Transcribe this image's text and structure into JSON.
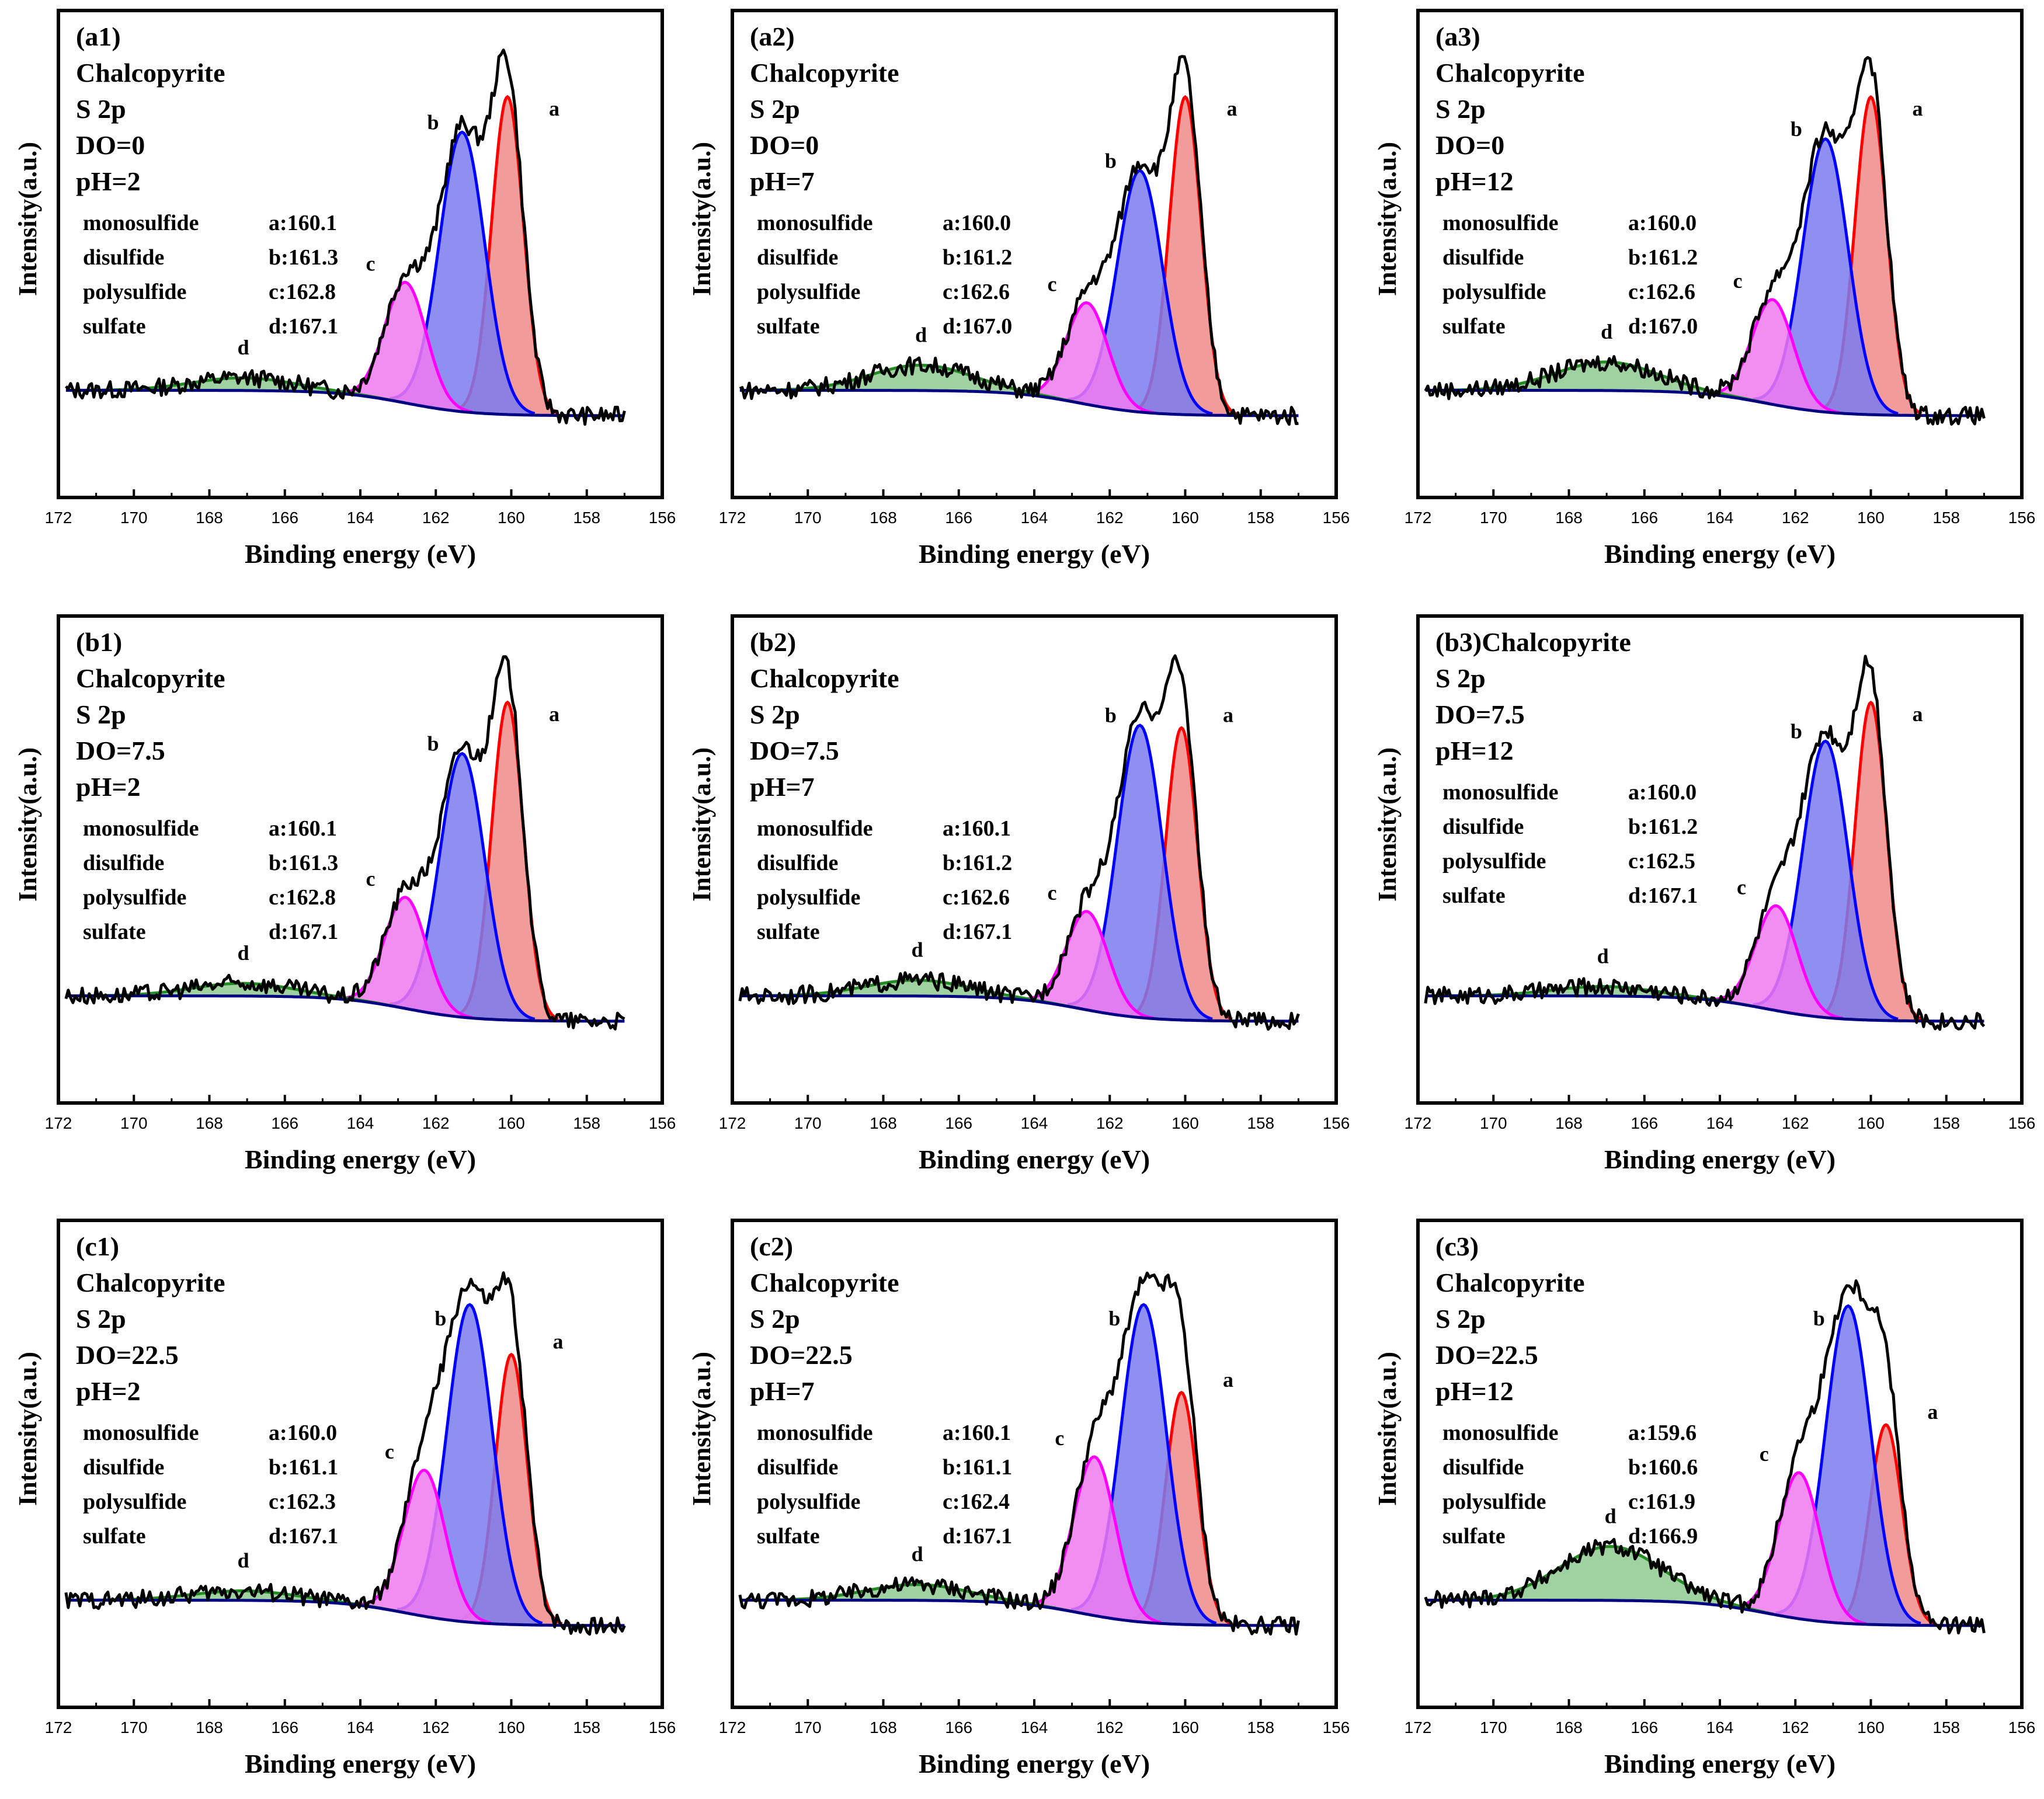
{
  "chart_data": [
    {
      "type": "line",
      "panel": "(a1)",
      "title": [
        "(a1)",
        "Chalcopyrite",
        "S 2p",
        "DO=0",
        "pH=2"
      ],
      "peaks": [
        {
          "label": "monosulfide",
          "letter": "a:",
          "center": 160.1
        },
        {
          "label": "disulfide",
          "letter": "b:",
          "center": 161.3
        },
        {
          "label": "polysulfide",
          "letter": "c:",
          "center": 162.8
        },
        {
          "label": "sulfate",
          "letter": "d:",
          "center": 167.1
        }
      ],
      "peak_heights": {
        "a": 100,
        "b": 88,
        "c": 38,
        "d": 4
      },
      "base": {
        "high": 8,
        "low": 0
      },
      "xlabel": "Binding energy (eV)",
      "ylabel": "Intensity(a.u.)",
      "xlim": [
        172,
        156
      ],
      "xticks": [
        172,
        170,
        168,
        166,
        164,
        162,
        160,
        158,
        156
      ]
    },
    {
      "type": "line",
      "panel": "(a2)",
      "title": [
        "(a2)",
        "Chalcopyrite",
        "S 2p",
        "DO=0",
        "pH=7"
      ],
      "peaks": [
        {
          "label": "monosulfide",
          "letter": "a:",
          "center": 160.0
        },
        {
          "label": "disulfide",
          "letter": "b:",
          "center": 161.2
        },
        {
          "label": "polysulfide",
          "letter": "c:",
          "center": 162.6
        },
        {
          "label": "sulfate",
          "letter": "d:",
          "center": 167.0
        }
      ],
      "peak_heights": {
        "a": 100,
        "b": 76,
        "c": 32,
        "d": 8
      },
      "base": {
        "high": 8,
        "low": 0
      },
      "xlabel": "Binding energy (eV)",
      "ylabel": "Intensity(a.u.)",
      "xlim": [
        172,
        156
      ],
      "xticks": [
        172,
        170,
        168,
        166,
        164,
        162,
        160,
        158,
        156
      ]
    },
    {
      "type": "line",
      "panel": "(a3)",
      "title": [
        "(a3)",
        "Chalcopyrite",
        "S 2p",
        "DO=0",
        "pH=12"
      ],
      "peaks": [
        {
          "label": "monosulfide",
          "letter": "a:",
          "center": 160.0
        },
        {
          "label": "disulfide",
          "letter": "b:",
          "center": 161.2
        },
        {
          "label": "polysulfide",
          "letter": "c:",
          "center": 162.6
        },
        {
          "label": "sulfate",
          "letter": "d:",
          "center": 167.0
        }
      ],
      "peak_heights": {
        "a": 100,
        "b": 86,
        "c": 33,
        "d": 9
      },
      "base": {
        "high": 8,
        "low": 0
      },
      "xlabel": "Binding energy (eV)",
      "ylabel": "Intensity(a.u.)",
      "xlim": [
        172,
        156
      ],
      "xticks": [
        172,
        170,
        168,
        166,
        164,
        162,
        160,
        158,
        156
      ]
    },
    {
      "type": "line",
      "panel": "(b1)",
      "title": [
        "(b1)",
        "Chalcopyrite",
        "S 2p",
        "DO=7.5",
        "pH=2"
      ],
      "peaks": [
        {
          "label": "monosulfide",
          "letter": "a:",
          "center": 160.1
        },
        {
          "label": "disulfide",
          "letter": "b:",
          "center": 161.3
        },
        {
          "label": "polysulfide",
          "letter": "c:",
          "center": 162.8
        },
        {
          "label": "sulfate",
          "letter": "d:",
          "center": 167.1
        }
      ],
      "peak_heights": {
        "a": 100,
        "b": 83,
        "c": 35,
        "d": 4
      },
      "base": {
        "high": 8,
        "low": 0
      },
      "xlabel": "Binding energy (eV)",
      "ylabel": "Intensity(a.u.)",
      "xlim": [
        172,
        156
      ],
      "xticks": [
        172,
        170,
        168,
        166,
        164,
        162,
        160,
        158,
        156
      ]
    },
    {
      "type": "line",
      "panel": "(b2)",
      "title": [
        "(b2)",
        "Chalcopyrite",
        "S 2p",
        "DO=7.5",
        "pH=7"
      ],
      "peaks": [
        {
          "label": "monosulfide",
          "letter": "a:",
          "center": 160.1
        },
        {
          "label": "disulfide",
          "letter": "b:",
          "center": 161.2
        },
        {
          "label": "polysulfide",
          "letter": "c:",
          "center": 162.6
        },
        {
          "label": "sulfate",
          "letter": "d:",
          "center": 167.1
        }
      ],
      "peak_heights": {
        "a": 92,
        "b": 92,
        "c": 31,
        "d": 5
      },
      "base": {
        "high": 8,
        "low": 0
      },
      "xlabel": "Binding energy (eV)",
      "ylabel": "Intensity(a.u.)",
      "xlim": [
        172,
        156
      ],
      "xticks": [
        172,
        170,
        168,
        166,
        164,
        162,
        160,
        158,
        156
      ]
    },
    {
      "type": "line",
      "panel": "(b3)",
      "title": [
        "(b3)Chalcopyrite",
        "S 2p",
        "DO=7.5",
        "pH=12"
      ],
      "peaks": [
        {
          "label": "monosulfide",
          "letter": "a:",
          "center": 160.0
        },
        {
          "label": "disulfide",
          "letter": "b:",
          "center": 161.2
        },
        {
          "label": "polysulfide",
          "letter": "c:",
          "center": 162.5
        },
        {
          "label": "sulfate",
          "letter": "d:",
          "center": 167.1
        }
      ],
      "peak_heights": {
        "a": 100,
        "b": 87,
        "c": 33,
        "d": 3
      },
      "base": {
        "high": 8,
        "low": 0
      },
      "xlabel": "Binding energy (eV)",
      "ylabel": "Intensity(a.u.)",
      "xlim": [
        172,
        156
      ],
      "xticks": [
        172,
        170,
        168,
        166,
        164,
        162,
        160,
        158,
        156
      ]
    },
    {
      "type": "line",
      "panel": "(c1)",
      "title": [
        "(c1)",
        "Chalcopyrite",
        "S 2p",
        "DO=22.5",
        "pH=2"
      ],
      "peaks": [
        {
          "label": "monosulfide",
          "letter": "a:",
          "center": 160.0
        },
        {
          "label": "disulfide",
          "letter": "b:",
          "center": 161.1
        },
        {
          "label": "polysulfide",
          "letter": "c:",
          "center": 162.3
        },
        {
          "label": "sulfate",
          "letter": "d:",
          "center": 167.1
        }
      ],
      "peak_heights": {
        "a": 85,
        "b": 100,
        "c": 46,
        "d": 3
      },
      "base": {
        "high": 8,
        "low": 0
      },
      "xlabel": "Binding energy (eV)",
      "ylabel": "Intensity(a.u.)",
      "xlim": [
        172,
        156
      ],
      "xticks": [
        172,
        170,
        168,
        166,
        164,
        162,
        160,
        158,
        156
      ]
    },
    {
      "type": "line",
      "panel": "(c2)",
      "title": [
        "(c2)",
        "Chalcopyrite",
        "S 2p",
        "DO=22.5",
        "pH=7"
      ],
      "peaks": [
        {
          "label": "monosulfide",
          "letter": "a:",
          "center": 160.1
        },
        {
          "label": "disulfide",
          "letter": "b:",
          "center": 161.1
        },
        {
          "label": "polysulfide",
          "letter": "c:",
          "center": 162.4
        },
        {
          "label": "sulfate",
          "letter": "d:",
          "center": 167.1
        }
      ],
      "peak_heights": {
        "a": 73,
        "b": 100,
        "c": 50,
        "d": 5
      },
      "base": {
        "high": 8,
        "low": 0
      },
      "xlabel": "Binding energy (eV)",
      "ylabel": "Intensity(a.u.)",
      "xlim": [
        172,
        156
      ],
      "xticks": [
        172,
        170,
        168,
        166,
        164,
        162,
        160,
        158,
        156
      ]
    },
    {
      "type": "line",
      "panel": "(c3)",
      "title": [
        "(c3)",
        "Chalcopyrite",
        "S 2p",
        "DO=22.5",
        "pH=12"
      ],
      "peaks": [
        {
          "label": "monosulfide",
          "letter": "a:",
          "center": 159.6
        },
        {
          "label": "disulfide",
          "letter": "b:",
          "center": 160.6
        },
        {
          "label": "polysulfide",
          "letter": "c:",
          "center": 161.9
        },
        {
          "label": "sulfate",
          "letter": "d:",
          "center": 166.9
        }
      ],
      "peak_heights": {
        "a": 63,
        "b": 100,
        "c": 46,
        "d": 17
      },
      "base": {
        "high": 8,
        "low": 0
      },
      "xlabel": "Binding energy (eV)",
      "ylabel": "Intensity(a.u.)",
      "xlim": [
        172,
        156
      ],
      "xticks": [
        172,
        170,
        168,
        166,
        164,
        162,
        160,
        158,
        156
      ]
    }
  ],
  "colors": {
    "a": "#ff0000",
    "a_fill": "#f08a8a",
    "b": "#0000ff",
    "b_fill": "#7b7bf0",
    "c": "#ff00ff",
    "c_fill": "#f07af0",
    "d": "#228b22",
    "d_fill": "#8fc98f",
    "baseline": "#000080",
    "envelope": "#000000",
    "letter_d": "#008000"
  }
}
